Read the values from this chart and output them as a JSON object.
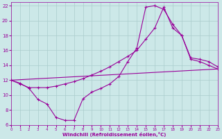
{
  "xlabel": "Windchill (Refroidissement éolien,°C)",
  "bg_color": "#cce8e8",
  "grid_color": "#aacccc",
  "line_color": "#990099",
  "xlim": [
    0,
    23
  ],
  "ylim": [
    6,
    22.5
  ],
  "xticks": [
    0,
    1,
    2,
    3,
    4,
    5,
    6,
    7,
    8,
    9,
    10,
    11,
    12,
    13,
    14,
    15,
    16,
    17,
    18,
    19,
    20,
    21,
    22,
    23
  ],
  "yticks": [
    6,
    8,
    10,
    12,
    14,
    16,
    18,
    20,
    22
  ],
  "line1_x": [
    0,
    1,
    2,
    3,
    4,
    5,
    6,
    7,
    8,
    9,
    10,
    11,
    12,
    13,
    14,
    15,
    16,
    17,
    18,
    19,
    20,
    21,
    22,
    23
  ],
  "line1_y": [
    12.0,
    11.6,
    10.9,
    9.4,
    8.8,
    7.0,
    6.6,
    6.6,
    9.5,
    10.4,
    10.9,
    11.5,
    12.5,
    14.5,
    16.3,
    21.8,
    22.0,
    21.5,
    19.5,
    18.0,
    14.8,
    14.5,
    14.0,
    13.5
  ],
  "line2_x": [
    0,
    1,
    2,
    3,
    4,
    5,
    6,
    7,
    8,
    9,
    10,
    11,
    12,
    13,
    14,
    15,
    16,
    17,
    18,
    19,
    20,
    21,
    22,
    23
  ],
  "line2_y": [
    12.0,
    11.5,
    11.0,
    11.0,
    11.0,
    11.2,
    11.5,
    11.8,
    12.2,
    12.7,
    13.2,
    13.8,
    14.5,
    15.2,
    16.0,
    17.5,
    19.0,
    21.8,
    19.0,
    18.0,
    15.0,
    14.8,
    14.5,
    13.8
  ],
  "line3_x": [
    0,
    23
  ],
  "line3_y": [
    12.0,
    13.5
  ]
}
